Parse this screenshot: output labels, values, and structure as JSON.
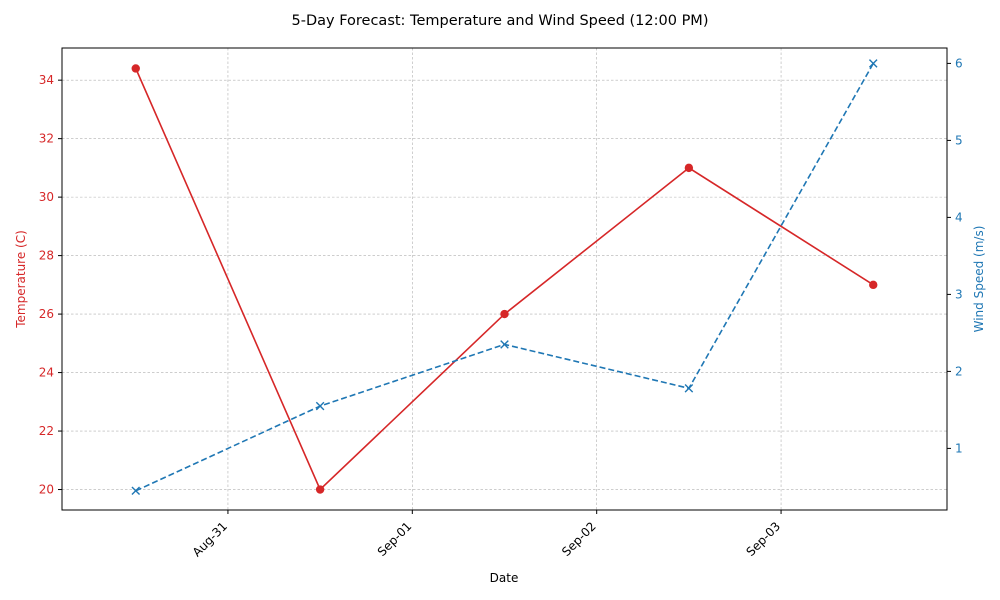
{
  "chart_data": {
    "type": "line",
    "title": "5-Day Forecast: Temperature and Wind Speed (12:00 PM)",
    "xlabel": "Date",
    "x": [
      "2024-08-30 12:00",
      "2024-08-31 12:00",
      "2024-09-01 12:00",
      "2024-09-02 12:00",
      "2024-09-03 12:00"
    ],
    "x_tick_labels": [
      "Aug-31",
      "Sep-01",
      "Sep-02",
      "Sep-03"
    ],
    "grid": true,
    "y_left": {
      "label": "Temperature (C)",
      "color": "#d62728",
      "ticks": [
        20,
        22,
        24,
        26,
        28,
        30,
        32,
        34
      ],
      "ylim": [
        19.3,
        35.1
      ]
    },
    "y_right": {
      "label": "Wind Speed (m/s)",
      "color": "#1f77b4",
      "ticks": [
        1,
        2,
        3,
        4,
        5,
        6
      ],
      "ylim": [
        0.2,
        6.2
      ]
    },
    "series": [
      {
        "axis": "left",
        "color": "#d62728",
        "line_style": "solid",
        "marker": "circle",
        "values": [
          34.4,
          20.0,
          26.0,
          31.0,
          27.0
        ]
      },
      {
        "axis": "right",
        "color": "#1f77b4",
        "line_style": "dashed",
        "marker": "x",
        "values": [
          0.45,
          1.55,
          2.35,
          1.78,
          6.0
        ]
      }
    ]
  }
}
